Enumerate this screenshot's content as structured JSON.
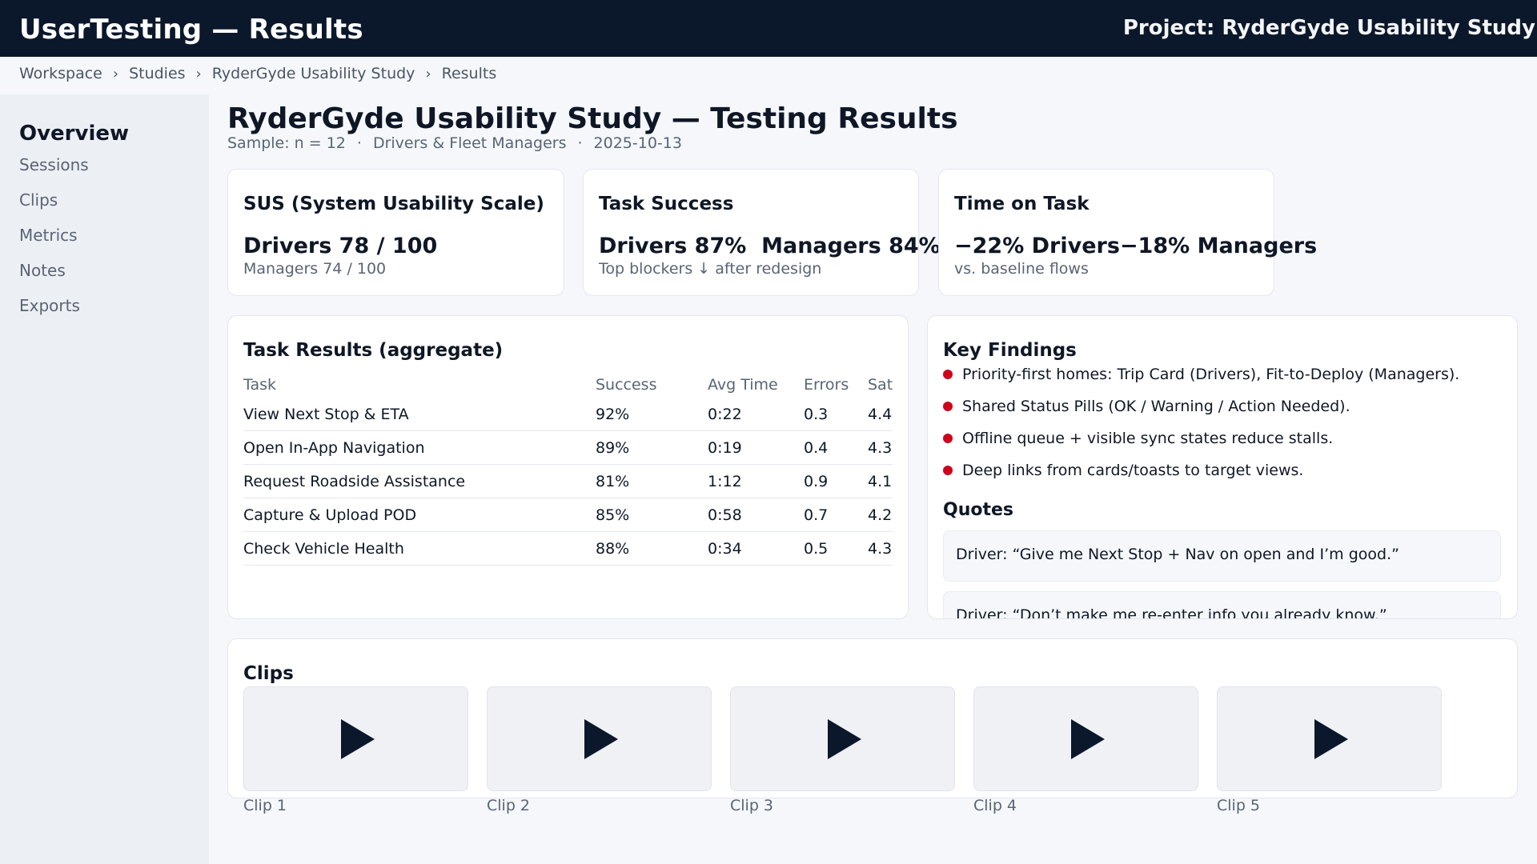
{
  "header": {
    "app_title": "UserTesting — Results",
    "project": "Project: RyderGyde Usability Study"
  },
  "breadcrumb": [
    "Workspace",
    "Studies",
    "RyderGyde Usability Study",
    "Results"
  ],
  "breadcrumb_sep": "›",
  "sidebar": {
    "title": "Overview",
    "items": [
      "Sessions",
      "Clips",
      "Metrics",
      "Notes",
      "Exports"
    ]
  },
  "page": {
    "title": "RyderGyde Usability Study — Testing Results",
    "meta": [
      "Sample: n = 12",
      "Drivers & Fleet Managers",
      "2025-10-13"
    ],
    "meta_sep": "·"
  },
  "metrics": {
    "sus": {
      "title": "SUS (System Usability Scale)",
      "big": "Drivers 78 / 100",
      "sub": "Managers 74 / 100"
    },
    "task_success": {
      "title": "Task Success",
      "big_a": "Drivers 87%",
      "big_b": "Managers 84%",
      "sub": "Top blockers ↓ after redesign"
    },
    "time_on_task": {
      "title": "Time on Task",
      "big_a": "−22% Drivers",
      "big_b": "−18% Managers",
      "sub": "vs. baseline flows"
    }
  },
  "task_results": {
    "title": "Task Results (aggregate)",
    "columns": [
      "Task",
      "Success",
      "Avg Time",
      "Errors",
      "Sat"
    ],
    "rows": [
      [
        "View Next Stop & ETA",
        "92%",
        "0:22",
        "0.3",
        "4.4"
      ],
      [
        "Open In-App Navigation",
        "89%",
        "0:19",
        "0.4",
        "4.3"
      ],
      [
        "Request Roadside Assistance",
        "81%",
        "1:12",
        "0.9",
        "4.1"
      ],
      [
        "Capture & Upload POD",
        "85%",
        "0:58",
        "0.7",
        "4.2"
      ],
      [
        "Check Vehicle Health",
        "88%",
        "0:34",
        "0.5",
        "4.3"
      ]
    ]
  },
  "key_findings": {
    "title": "Key Findings",
    "items": [
      "Priority-first homes: Trip Card (Drivers), Fit-to-Deploy (Managers).",
      "Shared Status Pills (OK / Warning / Action Needed).",
      "Offline queue + visible sync states reduce stalls.",
      "Deep links from cards/toasts to target views."
    ],
    "bullet_color": "#d0021b",
    "quotes_title": "Quotes",
    "quotes": [
      "Driver: “Give me Next Stop + Nav on open and I’m good.”",
      "Driver: “Don’t make me re-enter info you already know.”"
    ]
  },
  "clips": {
    "title": "Clips",
    "items": [
      "Clip 1",
      "Clip 2",
      "Clip 3",
      "Clip 4",
      "Clip 5"
    ],
    "icon": "play-icon"
  },
  "colors": {
    "header_bg": "#0b182b",
    "accent_red": "#d0021b",
    "text_primary": "#0f1726",
    "text_muted": "#5a6474"
  }
}
